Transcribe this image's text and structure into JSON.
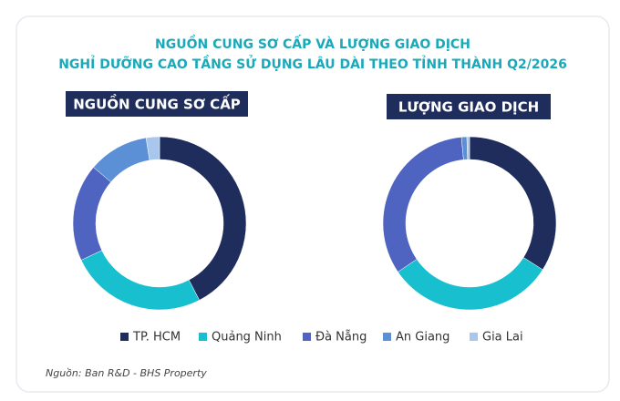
{
  "title": [
    "NGUỒN CUNG SƠ CẤP VÀ LƯỢNG GIAO DỊCH",
    "NGHỈ DƯỠNG CAO TẦNG SỬ DỤNG LÂU DÀI THEO TỈNH THÀNH Q2/2026"
  ],
  "source": "Nguồn: Ban R&D - BHS Property",
  "chart_data": [
    {
      "type": "donut",
      "title": "NGUỒN CUNG SƠ CẤP",
      "categories": [
        "TP. HCM",
        "Quảng Ninh",
        "Đà Nẵng",
        "An Giang",
        "Gia Lai"
      ],
      "values": [
        42.4,
        25.6,
        18.2,
        11.3,
        2.5
      ],
      "colors": [
        "#1f2d5c",
        "#17bfcf",
        "#4f63c0",
        "#5b8fd6",
        "#a9c6ec"
      ]
    },
    {
      "type": "donut",
      "title": "LƯỢNG GIAO DỊCH",
      "categories": [
        "TP. HCM",
        "Quảng Ninh",
        "Đà Nẵng",
        "An Giang",
        "Gia Lai"
      ],
      "values": [
        34,
        31.5,
        33,
        1,
        0.5
      ],
      "colors": [
        "#1f2d5c",
        "#17bfcf",
        "#4f63c0",
        "#5b8fd6",
        "#a9c6ec"
      ]
    }
  ]
}
